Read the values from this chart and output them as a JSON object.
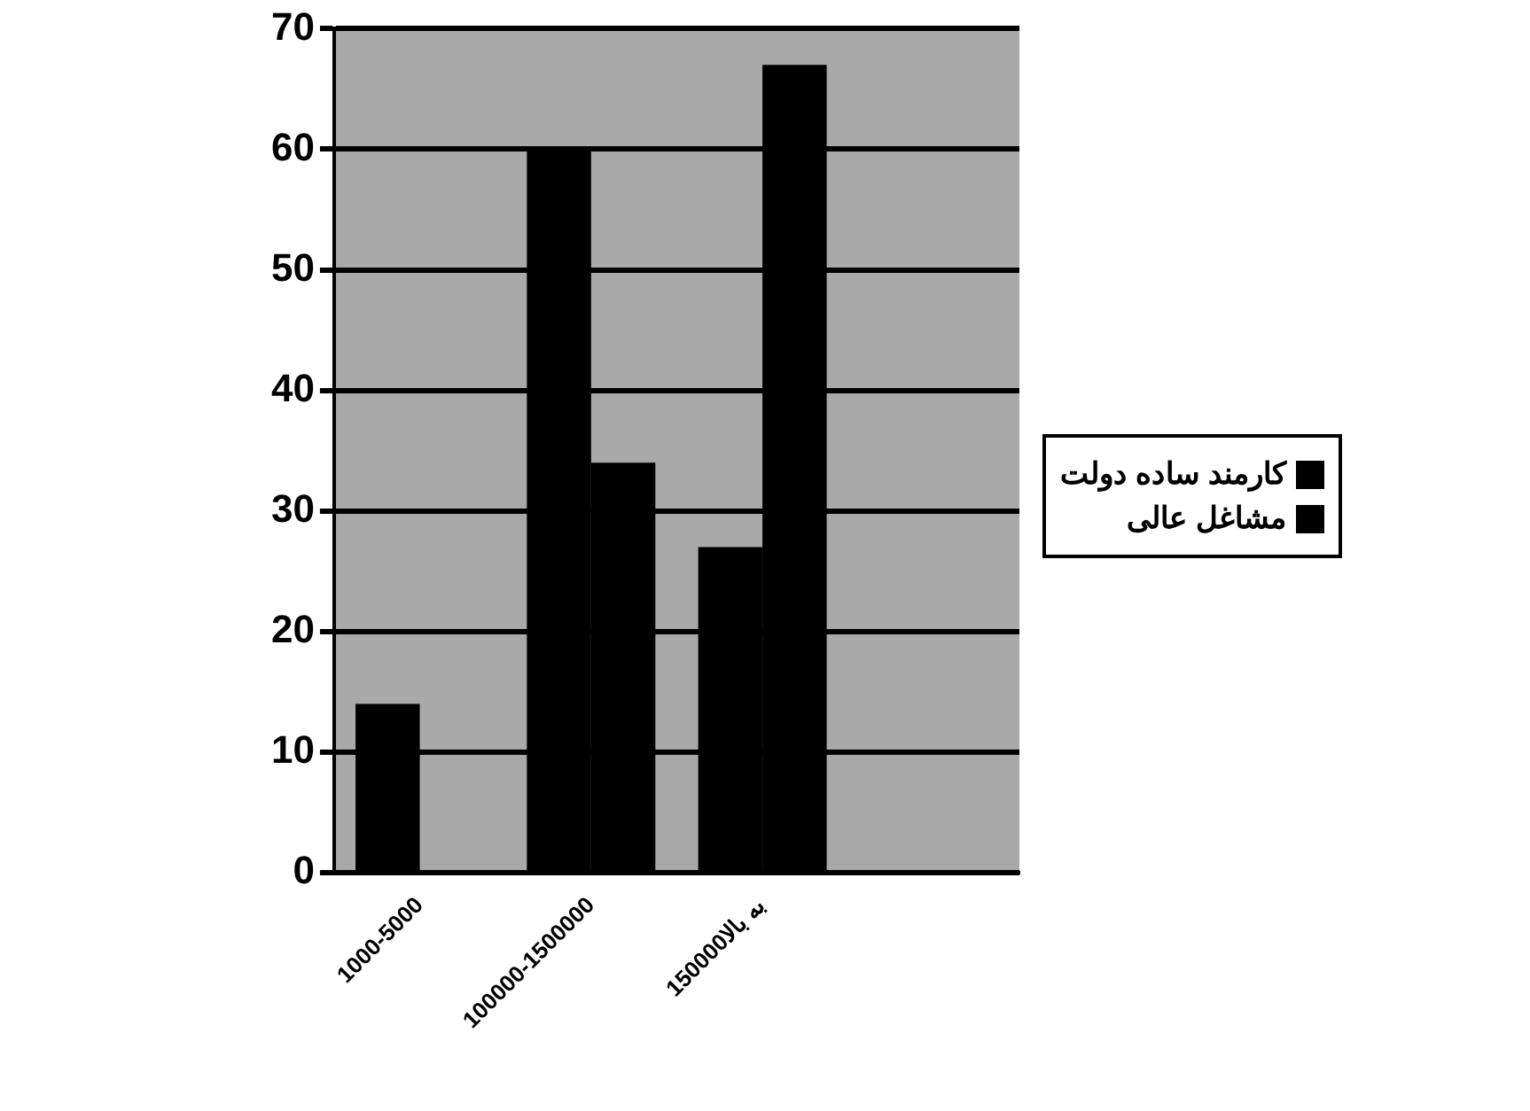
{
  "chart_data": {
    "type": "bar",
    "categories": [
      "1000-5000",
      "100000-1500000",
      "150000به بالا",
      null
    ],
    "series": [
      {
        "name": "کارمند ساده دولت",
        "color": "#000000",
        "values": [
          14,
          60,
          27,
          null
        ]
      },
      {
        "name": "مشاغل عالی",
        "color": "#000000",
        "values": [
          null,
          34,
          67,
          null
        ]
      }
    ],
    "ylim": [
      0,
      70
    ],
    "yticks": [
      0,
      10,
      20,
      30,
      40,
      50,
      60,
      70
    ],
    "grid": "y",
    "legend": "right"
  }
}
